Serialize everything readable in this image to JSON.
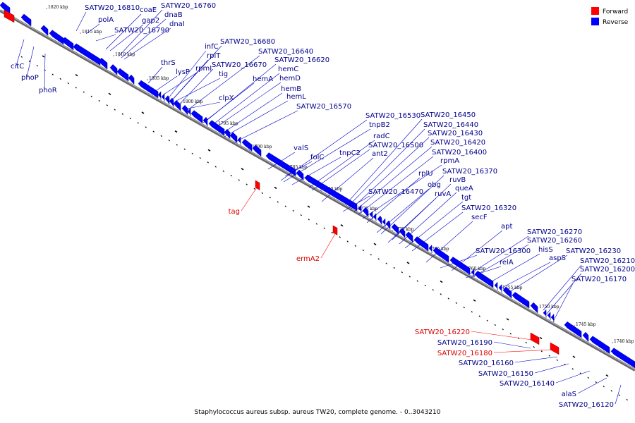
{
  "caption": "Staphylococcus aureus subsp. aureus TW20, complete genome. - 0..3043210",
  "legend": [
    {
      "label": "Forward",
      "color": "#ff0000"
    },
    {
      "label": "Reverse",
      "color": "#0000ff"
    }
  ],
  "colors": {
    "forward": "#ff0000",
    "reverse": "#0000ff",
    "line": "#888888"
  },
  "ticks": [
    "1820 kbp",
    "1815 kbp",
    "1810 kbp",
    "1805 kbp",
    "1800 kbp",
    "1795 kbp",
    "1790 kbp",
    "1785 kbp",
    "1780 kbp",
    "1775 kbp",
    "1770 kbp",
    "1765 kbp",
    "1760 kbp",
    "1755 kbp",
    "1750 kbp",
    "1745 kbp",
    "1740 kbp"
  ],
  "genes_upper": [
    "SATW20_16810",
    "polA",
    "coaE",
    "gap2",
    "SATW20_16760",
    "dnaB",
    "dnaI",
    "SATW20_16790",
    "infC",
    "rplT",
    "thrS",
    "lysP",
    "rpmI",
    "tig",
    "clpX",
    "SATW20_16680",
    "SATW20_16640",
    "SATW20_16620",
    "SATW20_16670",
    "hemC",
    "hemA",
    "hemD",
    "hemB",
    "hemL",
    "SATW20_16570",
    "valS",
    "folC",
    "tnpB2",
    "SATW20_16530",
    "radC",
    "SATW20_16500",
    "tnpC2",
    "ant2",
    "SATW20_16450",
    "SATW20_16440",
    "SATW20_16430",
    "SATW20_16420",
    "SATW20_16400",
    "rpmA",
    "rplU",
    "obg",
    "SATW20_16470",
    "SATW20_16370",
    "ruvB",
    "queA",
    "ruvA",
    "tgt",
    "SATW20_16320",
    "secF",
    "apt",
    "SATW20_16270",
    "SATW20_16260",
    "SATW20_16300",
    "hisS",
    "relA",
    "aspS",
    "SATW20_16230",
    "SATW20_16210",
    "SATW20_16200",
    "SATW20_16170"
  ],
  "genes_lower": [
    "citC",
    "phoP",
    "phoR",
    "SATW20_16190",
    "SATW20_16160",
    "SATW20_16150",
    "SATW20_16140",
    "alaS",
    "SATW20_16120"
  ],
  "genes_forward": [
    "tag",
    "ermA2",
    "SATW20_16220",
    "SATW20_16180"
  ]
}
